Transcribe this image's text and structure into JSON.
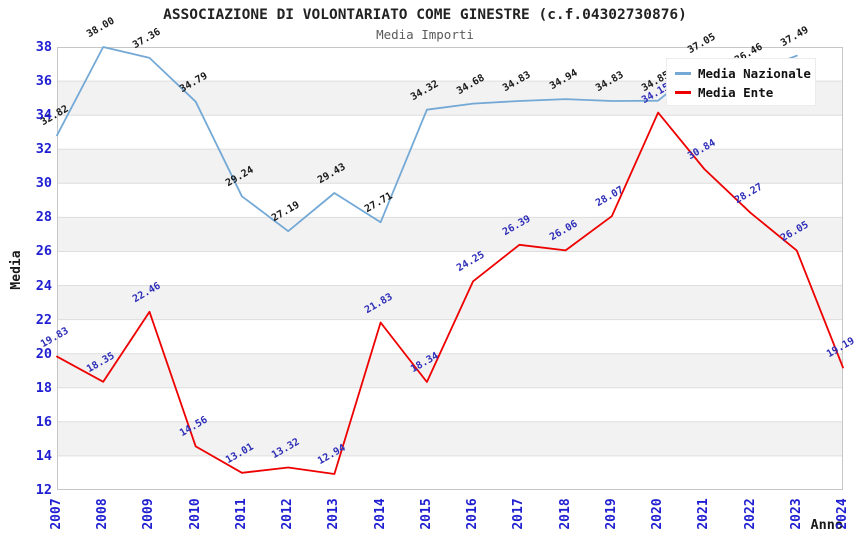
{
  "header": {
    "title": "ASSOCIAZIONE DI VOLONTARIATO COME GINESTRE (c.f.04302730876)",
    "subtitle": "Media Importi"
  },
  "axes": {
    "y_label": "Media",
    "x_label": "Anno",
    "y_ticks": [
      12,
      14,
      16,
      18,
      20,
      22,
      24,
      26,
      28,
      30,
      32,
      34,
      36,
      38
    ],
    "x_ticks": [
      "2007",
      "2008",
      "2009",
      "2010",
      "2011",
      "2012",
      "2013",
      "2014",
      "2015",
      "2016",
      "2017",
      "2018",
      "2019",
      "2020",
      "2021",
      "2022",
      "2023",
      "2024"
    ],
    "tick_color": "#1f1fd1"
  },
  "legend": {
    "items": [
      {
        "label": "Media Nazionale",
        "color": "#74a9d6"
      },
      {
        "label": "Media Ente",
        "color": "#ee0000"
      }
    ]
  },
  "colors": {
    "band_gray": "#f2f2f2",
    "gridline": "#dedede",
    "plot_border": "#c6c6c6",
    "title_text": "#222222",
    "subtitle_text": "#5a5a5a"
  },
  "chart_data": {
    "type": "line",
    "title": "ASSOCIAZIONE DI VOLONTARIATO COME GINESTRE (c.f.04302730876)",
    "subtitle": "Media Importi",
    "xlabel": "Anno",
    "ylabel": "Media",
    "x": [
      2007,
      2008,
      2009,
      2010,
      2011,
      2012,
      2013,
      2014,
      2015,
      2016,
      2017,
      2018,
      2019,
      2020,
      2021,
      2022,
      2023,
      2024
    ],
    "series": [
      {
        "name": "Media Nazionale",
        "color": "#74a9d6",
        "label_color": "#1a1a1a",
        "values": [
          32.82,
          38.0,
          37.36,
          34.79,
          29.24,
          27.19,
          29.43,
          27.71,
          34.32,
          34.68,
          34.83,
          34.94,
          34.83,
          34.85,
          37.05,
          36.46,
          37.49,
          null
        ]
      },
      {
        "name": "Media Ente",
        "color": "#ee0000",
        "label_color": "#2e2eb8",
        "values": [
          19.83,
          18.35,
          22.46,
          14.56,
          13.01,
          13.32,
          12.94,
          21.83,
          18.34,
          24.25,
          26.39,
          26.06,
          28.07,
          34.15,
          30.84,
          28.27,
          26.05,
          19.19
        ]
      }
    ],
    "ylim": [
      12,
      38
    ],
    "grid": "horizontal, alternating shaded bands every 2 units",
    "legend_position": "top-right overlay, white background",
    "notes": "2022 Media Nazionale label and 2024 Media Nazionale point are hidden behind the legend box"
  }
}
